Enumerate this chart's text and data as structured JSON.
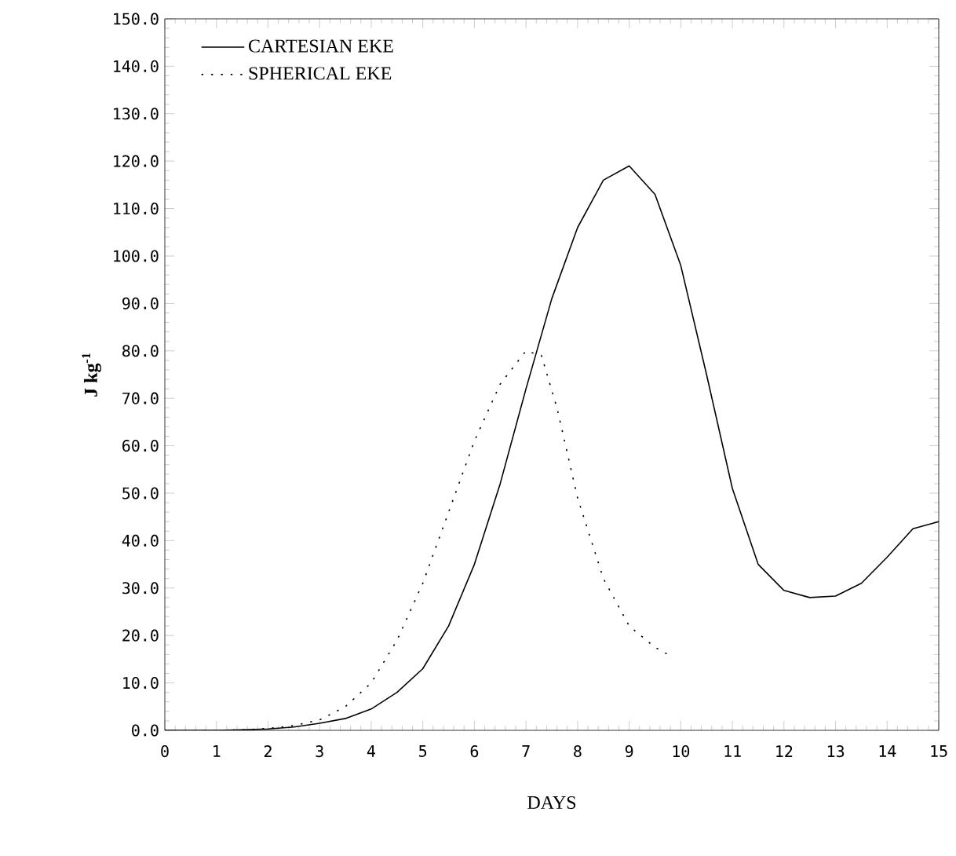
{
  "chart_data": {
    "type": "line",
    "xlabel": "DAYS",
    "ylabel": "J kg$^{-1}$",
    "xlim": [
      0,
      15
    ],
    "ylim": [
      0,
      150
    ],
    "xticks": [
      0,
      1,
      2,
      3,
      4,
      5,
      6,
      7,
      8,
      9,
      10,
      11,
      12,
      13,
      14,
      15
    ],
    "yticks": [
      {
        "value": 0,
        "label": "0.0"
      },
      {
        "value": 10,
        "label": "10.0"
      },
      {
        "value": 20,
        "label": "20.0"
      },
      {
        "value": 30,
        "label": "30.0"
      },
      {
        "value": 40,
        "label": "40.0"
      },
      {
        "value": 50,
        "label": "50.0"
      },
      {
        "value": 60,
        "label": "60.0"
      },
      {
        "value": 70,
        "label": "70.0"
      },
      {
        "value": 80,
        "label": "80.0"
      },
      {
        "value": 90,
        "label": "90.0"
      },
      {
        "value": 100,
        "label": "100.0"
      },
      {
        "value": 110,
        "label": "110.0"
      },
      {
        "value": 120,
        "label": "120.0"
      },
      {
        "value": 130,
        "label": "130.0"
      },
      {
        "value": 140,
        "label": "140.0"
      },
      {
        "value": 150,
        "label": "150.0"
      }
    ],
    "legend": "top left",
    "grid": false,
    "marker": "none",
    "series": [
      {
        "name": "CARTESIAN EKE",
        "color": "#000000",
        "line_style": "solid",
        "x": [
          0,
          0.5,
          1,
          1.5,
          2,
          2.5,
          3,
          3.5,
          4,
          4.5,
          5,
          5.5,
          6,
          6.5,
          7,
          7.5,
          8,
          8.5,
          9,
          9.5,
          10,
          10.5,
          11,
          11.5,
          12,
          12.5,
          13,
          13.5,
          14,
          14.5,
          15
        ],
        "values": [
          0,
          0,
          0,
          0.1,
          0.3,
          0.7,
          1.5,
          2.5,
          4.5,
          8,
          13,
          22,
          35,
          52,
          72,
          91,
          106,
          116,
          119,
          113,
          98,
          75,
          51,
          35,
          29.5,
          28,
          28.3,
          31,
          36.5,
          42.5,
          44
        ]
      },
      {
        "name": "SPHERICAL EKE",
        "color": "#000000",
        "line_style": "dotted",
        "x": [
          0,
          0.5,
          1,
          1.5,
          2,
          2.5,
          3,
          3.5,
          4,
          4.5,
          5,
          5.5,
          6,
          6.5,
          7,
          7.3,
          7.6,
          8,
          8.5,
          9,
          9.5,
          9.75
        ],
        "values": [
          0,
          0,
          0,
          0.1,
          0.4,
          1,
          2.2,
          5,
          10,
          19,
          31,
          46,
          61,
          73,
          80,
          79,
          68,
          49,
          32,
          22,
          17.5,
          16
        ]
      }
    ]
  }
}
